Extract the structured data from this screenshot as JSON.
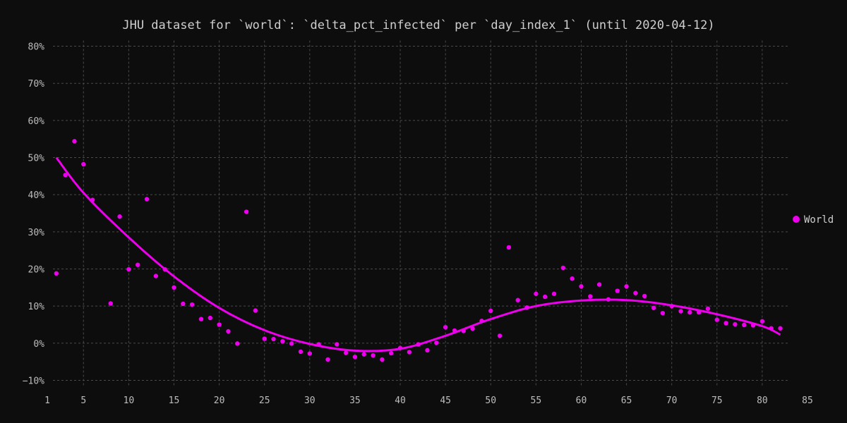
{
  "chart_data": {
    "type": "scatter",
    "title": "JHU dataset for `world`: `delta_pct_infected` per `day_index_1` (until 2020-04-12)",
    "xlabel": "",
    "ylabel": "",
    "xlim": [
      1,
      85
    ],
    "ylim": [
      -12,
      82
    ],
    "x_ticks": [
      1,
      5,
      10,
      15,
      20,
      25,
      30,
      35,
      40,
      45,
      50,
      55,
      60,
      65,
      70,
      75,
      80,
      85
    ],
    "y_ticks": [
      -10,
      0,
      10,
      20,
      30,
      40,
      50,
      60,
      70,
      80
    ],
    "y_tick_labels": [
      "−10%",
      "0%",
      "10%",
      "20%",
      "30%",
      "40%",
      "50%",
      "60%",
      "70%",
      "80%"
    ],
    "grid": true,
    "legend_position": "right",
    "colors": {
      "series": "#ee00ee",
      "background": "#0d0d0d",
      "grid": "#4a4a4a",
      "text": "#cfcfcf"
    },
    "series": [
      {
        "name": "World",
        "points": [
          [
            2,
            18.8
          ],
          [
            3,
            45.3
          ],
          [
            4,
            54.4
          ],
          [
            5,
            48.2
          ],
          [
            6,
            38.6
          ],
          [
            8,
            10.7
          ],
          [
            9,
            34.1
          ],
          [
            10,
            19.9
          ],
          [
            11,
            21.1
          ],
          [
            12,
            38.8
          ],
          [
            13,
            18.1
          ],
          [
            14,
            19.9
          ],
          [
            15,
            15.0
          ],
          [
            16,
            10.6
          ],
          [
            17,
            10.4
          ],
          [
            18,
            6.5
          ],
          [
            19,
            6.8
          ],
          [
            20,
            5.0
          ],
          [
            21,
            3.2
          ],
          [
            22,
            -0.1
          ],
          [
            23,
            35.4
          ],
          [
            24,
            8.8
          ],
          [
            25,
            1.2
          ],
          [
            26,
            1.1
          ],
          [
            27,
            0.5
          ],
          [
            28,
            -0.1
          ],
          [
            29,
            -2.3
          ],
          [
            30,
            -2.8
          ],
          [
            31,
            -0.3
          ],
          [
            32,
            -4.4
          ],
          [
            33,
            -0.3
          ],
          [
            34,
            -2.6
          ],
          [
            35,
            -3.7
          ],
          [
            36,
            -3.0
          ],
          [
            37,
            -3.3
          ],
          [
            38,
            -4.4
          ],
          [
            39,
            -2.7
          ],
          [
            40,
            -1.3
          ],
          [
            41,
            -2.4
          ],
          [
            42,
            -0.3
          ],
          [
            43,
            -1.9
          ],
          [
            44,
            0.1
          ],
          [
            45,
            4.3
          ],
          [
            46,
            3.4
          ],
          [
            47,
            3.3
          ],
          [
            48,
            3.9
          ],
          [
            49,
            6.0
          ],
          [
            50,
            8.7
          ],
          [
            51,
            2.0
          ],
          [
            52,
            25.8
          ],
          [
            53,
            11.6
          ],
          [
            54,
            9.6
          ],
          [
            55,
            13.3
          ],
          [
            56,
            12.5
          ],
          [
            57,
            13.3
          ],
          [
            58,
            20.3
          ],
          [
            59,
            17.4
          ],
          [
            60,
            15.3
          ],
          [
            61,
            12.6
          ],
          [
            62,
            15.8
          ],
          [
            63,
            11.8
          ],
          [
            64,
            14.1
          ],
          [
            65,
            15.3
          ],
          [
            66,
            13.5
          ],
          [
            67,
            12.7
          ],
          [
            68,
            9.5
          ],
          [
            69,
            8.1
          ],
          [
            70,
            10.0
          ],
          [
            71,
            8.6
          ],
          [
            72,
            8.3
          ],
          [
            73,
            8.3
          ],
          [
            74,
            9.3
          ],
          [
            75,
            6.3
          ],
          [
            76,
            5.4
          ],
          [
            77,
            5.1
          ],
          [
            78,
            4.9
          ],
          [
            79,
            4.8
          ],
          [
            80,
            5.9
          ],
          [
            81,
            4.0
          ],
          [
            82,
            4.0
          ]
        ]
      }
    ],
    "trend_line": {
      "series": "World",
      "points": [
        [
          2,
          50.0
        ],
        [
          5,
          40.5
        ],
        [
          10,
          28.5
        ],
        [
          15,
          18.0
        ],
        [
          20,
          9.5
        ],
        [
          25,
          3.5
        ],
        [
          30,
          -0.2
        ],
        [
          35,
          -2.0
        ],
        [
          40,
          -1.5
        ],
        [
          45,
          2.0
        ],
        [
          50,
          6.5
        ],
        [
          55,
          10.0
        ],
        [
          60,
          11.5
        ],
        [
          65,
          11.6
        ],
        [
          70,
          10.2
        ],
        [
          75,
          7.8
        ],
        [
          80,
          4.6
        ],
        [
          82,
          2.3
        ]
      ]
    }
  }
}
